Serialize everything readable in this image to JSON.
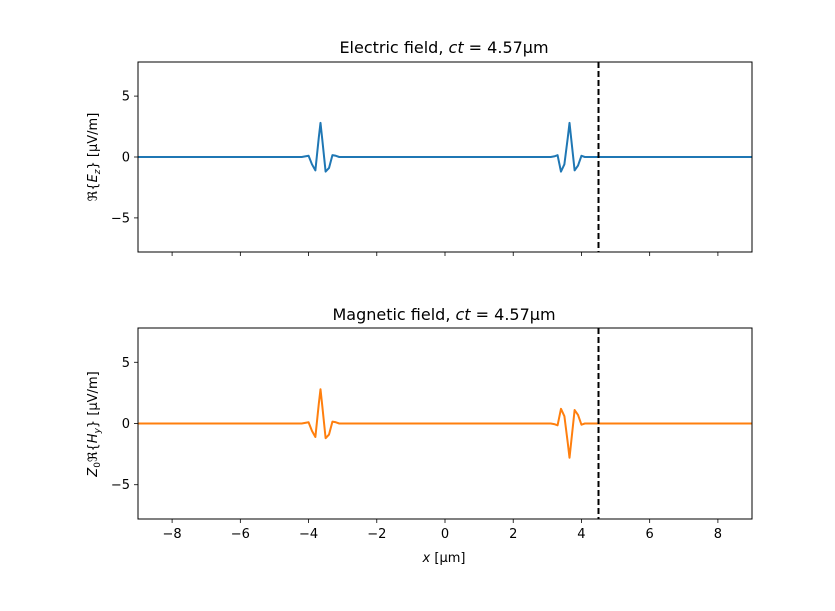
{
  "chart_data": [
    {
      "type": "line",
      "title_prefix": "Electric field, ",
      "title_math": "ct = 4.57μm",
      "ylabel": "ℜ{E_z} [μV/m]",
      "xlim": [
        -9,
        9
      ],
      "ylim": [
        -7.8,
        7.8
      ],
      "xticks": [
        -8,
        -6,
        -4,
        -2,
        0,
        2,
        4,
        6,
        8
      ],
      "yticks": [
        -5,
        0,
        5
      ],
      "xtick_labels_visible": false,
      "vline_x": 4.5,
      "series": [
        {
          "color": "#1f77b4",
          "x": [
            -9,
            -4.2,
            -4.1,
            -4.0,
            -3.9,
            -3.8,
            -3.7,
            -3.65,
            -3.6,
            -3.5,
            -3.4,
            -3.3,
            -3.2,
            -3.1,
            -3.0,
            3.0,
            3.1,
            3.2,
            3.3,
            3.4,
            3.5,
            3.6,
            3.65,
            3.7,
            3.8,
            3.9,
            4.0,
            4.1,
            4.2,
            9
          ],
          "y": [
            0,
            0,
            0.05,
            0.1,
            -0.6,
            -1.1,
            1.6,
            2.8,
            1.5,
            -1.2,
            -0.9,
            0.15,
            0.1,
            0,
            0,
            0,
            0,
            0.05,
            0.15,
            -1.2,
            -0.6,
            1.6,
            2.8,
            1.5,
            -1.1,
            -0.7,
            0.1,
            0,
            0,
            0
          ]
        }
      ]
    },
    {
      "type": "line",
      "title_prefix": "Magnetic field, ",
      "title_math": "ct = 4.57μm",
      "ylabel": "Z₀ℜ{H_y} [μV/m]",
      "xlabel": "x [μm]",
      "xlim": [
        -9,
        9
      ],
      "ylim": [
        -7.8,
        7.8
      ],
      "xticks": [
        -8,
        -6,
        -4,
        -2,
        0,
        2,
        4,
        6,
        8
      ],
      "yticks": [
        -5,
        0,
        5
      ],
      "xtick_labels_visible": true,
      "vline_x": 4.5,
      "series": [
        {
          "color": "#ff7f0e",
          "x": [
            -9,
            -4.2,
            -4.1,
            -4.0,
            -3.9,
            -3.8,
            -3.7,
            -3.65,
            -3.6,
            -3.5,
            -3.4,
            -3.3,
            -3.2,
            -3.1,
            -3.0,
            3.0,
            3.1,
            3.2,
            3.3,
            3.4,
            3.5,
            3.6,
            3.65,
            3.7,
            3.8,
            3.9,
            4.0,
            4.1,
            4.2,
            9
          ],
          "y": [
            0,
            0,
            0.05,
            0.1,
            -0.6,
            -1.1,
            1.6,
            2.8,
            1.5,
            -1.2,
            -0.9,
            0.15,
            0.1,
            0,
            0,
            0,
            0,
            -0.05,
            -0.15,
            1.2,
            0.6,
            -1.6,
            -2.8,
            -1.5,
            1.1,
            0.7,
            -0.1,
            0,
            0,
            0
          ]
        }
      ]
    }
  ]
}
